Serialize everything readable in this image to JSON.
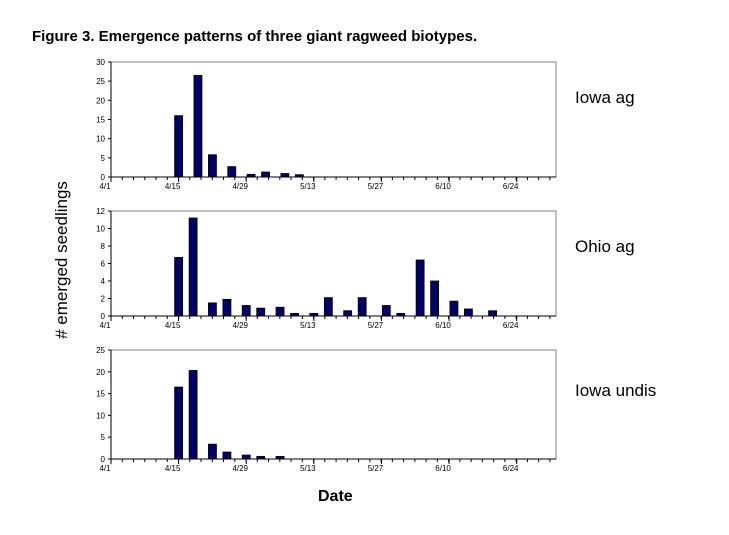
{
  "title": "Figure 3.  Emergence patterns of three giant ragweed biotypes.",
  "chart_data": [
    {
      "type": "bar",
      "name": "Iowa ag",
      "x_unit": "days since 4/1",
      "x": [
        14,
        18,
        21,
        25,
        29,
        32,
        36,
        39
      ],
      "values": [
        16,
        26.5,
        5.8,
        2.7,
        0.7,
        1.3,
        0.9,
        0.6
      ],
      "ylim": [
        0,
        30
      ],
      "yticks": [
        0,
        5,
        10,
        15,
        20,
        25,
        30
      ]
    },
    {
      "type": "bar",
      "name": "Ohio ag",
      "x_unit": "days since 4/1",
      "x": [
        14,
        17,
        21,
        24,
        28,
        31,
        35,
        38,
        42,
        45,
        49,
        52,
        57,
        60,
        64,
        67,
        71,
        74,
        79
      ],
      "values": [
        6.7,
        11.2,
        1.5,
        1.9,
        1.2,
        0.9,
        1.0,
        0.3,
        0.3,
        2.1,
        0.6,
        2.1,
        1.2,
        0.3,
        6.4,
        4.0,
        1.7,
        0.8,
        0.6
      ],
      "ylim": [
        0,
        12
      ],
      "yticks": [
        0,
        2,
        4,
        6,
        8,
        10,
        12
      ]
    },
    {
      "type": "bar",
      "name": "Iowa undis",
      "x_unit": "days since 4/1",
      "x": [
        14,
        17,
        21,
        24,
        28,
        31,
        35
      ],
      "values": [
        16.5,
        20.3,
        3.4,
        1.6,
        0.9,
        0.6,
        0.6
      ],
      "ylim": [
        0,
        25
      ],
      "yticks": [
        0,
        5,
        10,
        15,
        20,
        25
      ]
    }
  ],
  "xticks": [
    {
      "day": 0,
      "label": "4/1"
    },
    {
      "day": 14,
      "label": "4/15"
    },
    {
      "day": 28,
      "label": "4/29"
    },
    {
      "day": 42,
      "label": "5/13"
    },
    {
      "day": 56,
      "label": "5/27"
    },
    {
      "day": 70,
      "label": "6/10"
    },
    {
      "day": 84,
      "label": "6/24"
    }
  ],
  "xlim": [
    0,
    92
  ],
  "xlabel": "Date",
  "ylabel": "# emerged seedlings",
  "bar_color": "#000066"
}
